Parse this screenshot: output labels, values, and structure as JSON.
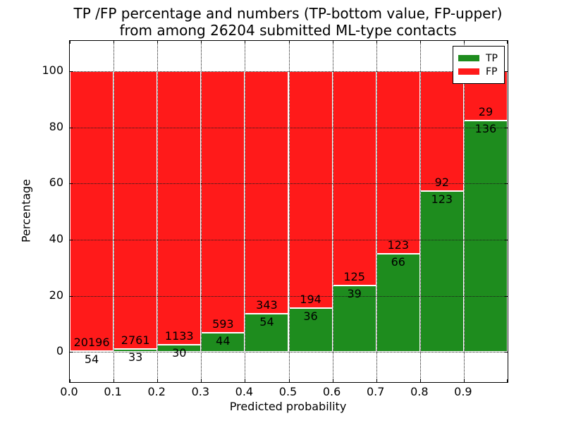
{
  "title": {
    "line1": "TP /FP percentage and numbers (TP-bottom value, FP-upper)",
    "line2": "from among 26204 submitted ML-type contacts"
  },
  "chart_data": {
    "type": "bar",
    "stacked": true,
    "normalized_to_percent": true,
    "title": "TP /FP percentage and numbers (TP-bottom value, FP-upper)\nfrom among 26204 submitted ML-type contacts",
    "xlabel": "Predicted probability",
    "ylabel": "Percentage",
    "total_contacts": 26204,
    "categories": [
      "0.0-0.1",
      "0.1-0.2",
      "0.2-0.3",
      "0.3-0.4",
      "0.4-0.5",
      "0.5-0.6",
      "0.6-0.7",
      "0.7-0.8",
      "0.8-0.9",
      "0.9-1.0"
    ],
    "bin_width": 0.1,
    "series": [
      {
        "name": "TP",
        "color": "#1e8c1e",
        "values": [
          54,
          33,
          30,
          44,
          54,
          36,
          39,
          66,
          123,
          136
        ]
      },
      {
        "name": "FP",
        "color": "#ff1a1a",
        "values": [
          20196,
          2761,
          1133,
          593,
          343,
          194,
          125,
          123,
          92,
          29
        ]
      }
    ],
    "tp_percent_of_bin": [
      0.27,
      1.18,
      2.58,
      6.91,
      13.6,
      15.65,
      23.78,
      34.92,
      57.21,
      82.42
    ],
    "x_tick_labels": [
      "0.0",
      "0.1",
      "0.2",
      "0.3",
      "0.4",
      "0.5",
      "0.6",
      "0.7",
      "0.8",
      "0.9"
    ],
    "y_ticks": [
      0,
      20,
      40,
      60,
      80,
      100
    ],
    "xlim": [
      0.0,
      1.0
    ],
    "ylim": [
      -10.7,
      110.8
    ],
    "grid": true,
    "legend": {
      "position": "upper right",
      "entries": [
        {
          "label": "TP",
          "color": "#1e8c1e"
        },
        {
          "label": "FP",
          "color": "#ff1a1a"
        }
      ]
    }
  }
}
